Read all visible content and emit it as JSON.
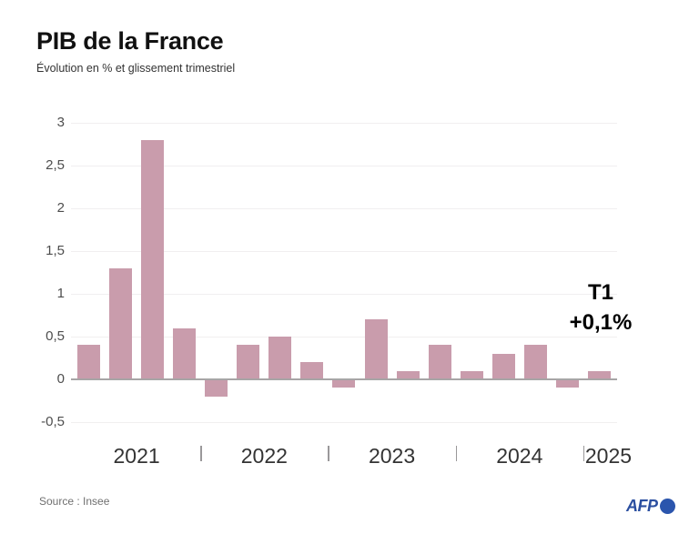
{
  "title": "PIB de la France",
  "subtitle": "Évolution en % et glissement trimestriel",
  "source": "Source : Insee",
  "branding": {
    "logo_text": "AFP"
  },
  "annotation": {
    "line1": "T1",
    "line2": "+0,1%"
  },
  "colors": {
    "bar": "#c99cac",
    "zero_line": "#a7a5a6",
    "gridline": "#f1eff0",
    "axis_text": "#4d4d4d",
    "year_text": "#333333",
    "tick_mark": "#9a989a",
    "title_text": "#111111",
    "subtitle_text": "#333333",
    "source_text": "#6f6f6f",
    "annotation_text": "#000000",
    "afp_blue": "#2b4fa0",
    "afp_globe_blue": "#2b55ad",
    "background": "#ffffff"
  },
  "chart_data": {
    "type": "bar",
    "title": "PIB de la France",
    "subtitle": "Évolution en % et glissement trimestriel",
    "xlabel": "",
    "ylabel": "Évolution en %",
    "unit": "%",
    "grid": true,
    "legend": "none",
    "categories": [
      "2021 T1",
      "2021 T2",
      "2021 T3",
      "2021 T4",
      "2022 T1",
      "2022 T2",
      "2022 T3",
      "2022 T4",
      "2023 T1",
      "2023 T2",
      "2023 T3",
      "2023 T4",
      "2024 T1",
      "2024 T2",
      "2024 T3",
      "2024 T4",
      "2025 T1"
    ],
    "values": [
      0.4,
      1.3,
      2.8,
      0.6,
      -0.2,
      0.4,
      0.5,
      0.2,
      -0.1,
      0.7,
      0.1,
      0.4,
      0.1,
      0.3,
      0.4,
      -0.1,
      0.1
    ],
    "year_groups": [
      {
        "label": "2021",
        "quarters": 4
      },
      {
        "label": "2022",
        "quarters": 4
      },
      {
        "label": "2023",
        "quarters": 4
      },
      {
        "label": "2024",
        "quarters": 4
      },
      {
        "label": "2025",
        "quarters": 1
      }
    ],
    "y_axis": {
      "ylim": [
        -0.5,
        3
      ],
      "ticks": [
        {
          "label": "3",
          "value": 3
        },
        {
          "label": "2,5",
          "value": 2.5
        },
        {
          "label": "2",
          "value": 2
        },
        {
          "label": "1,5",
          "value": 1.5
        },
        {
          "label": "1",
          "value": 1
        },
        {
          "label": "0,5",
          "value": 0.5
        },
        {
          "label": "0",
          "value": 0
        },
        {
          "label": "-0,5",
          "value": -0.5
        }
      ]
    },
    "annotation": "T1 +0,1%"
  }
}
